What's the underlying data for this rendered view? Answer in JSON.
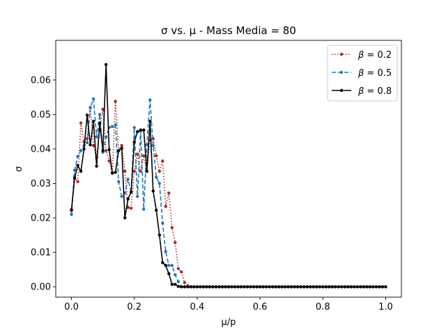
{
  "chart_data": {
    "type": "line",
    "title": "σ vs. μ - Mass Media = 80",
    "xlabel": "μ/p",
    "ylabel": "σ",
    "xlim": [
      -0.05,
      1.05
    ],
    "ylim": [
      -0.003,
      0.0715
    ],
    "xticks": [
      0.0,
      0.2,
      0.4,
      0.6,
      0.8,
      1.0
    ],
    "xtick_labels": [
      "0.0",
      "0.2",
      "0.4",
      "0.6",
      "0.8",
      "1.0"
    ],
    "yticks": [
      0.0,
      0.01,
      0.02,
      0.03,
      0.04,
      0.05,
      0.06
    ],
    "ytick_labels": [
      "0.00",
      "0.01",
      "0.02",
      "0.03",
      "0.04",
      "0.05",
      "0.06"
    ],
    "grid": false,
    "legend_position": "top-right",
    "x": [
      0.0,
      0.01,
      0.02,
      0.03,
      0.04,
      0.05,
      0.06,
      0.07,
      0.08,
      0.09,
      0.1,
      0.11,
      0.12,
      0.13,
      0.14,
      0.15,
      0.16,
      0.17,
      0.18,
      0.19,
      0.2,
      0.21,
      0.22,
      0.23,
      0.24,
      0.25,
      0.26,
      0.27,
      0.28,
      0.29,
      0.3,
      0.31,
      0.32,
      0.33,
      0.34,
      0.35,
      0.36,
      0.37,
      0.38,
      0.39,
      0.4,
      0.41,
      0.42,
      0.43,
      0.44,
      0.45,
      0.46,
      0.47,
      0.48,
      0.49,
      0.5,
      0.51,
      0.52,
      0.53,
      0.54,
      0.55,
      0.56,
      0.57,
      0.58,
      0.59,
      0.6,
      0.61,
      0.62,
      0.63,
      0.64,
      0.65,
      0.66,
      0.67,
      0.68,
      0.69,
      0.7,
      0.71,
      0.72,
      0.73,
      0.74,
      0.75,
      0.76,
      0.77,
      0.78,
      0.79,
      0.8,
      0.81,
      0.82,
      0.83,
      0.84,
      0.85,
      0.86,
      0.87,
      0.88,
      0.89,
      0.9,
      0.91,
      0.92,
      0.93,
      0.94,
      0.95,
      0.96,
      0.97,
      0.98,
      0.99,
      1.0
    ],
    "series": [
      {
        "name": "β = 0.2",
        "legend_prefix": "β",
        "legend_value": "0.2",
        "color": "#a52a2a",
        "style": "dotted",
        "values": [
          0.0225,
          0.032,
          0.0305,
          0.0475,
          0.042,
          0.043,
          0.052,
          0.041,
          0.0375,
          0.0455,
          0.0515,
          0.0395,
          0.0365,
          0.033,
          0.0538,
          0.0395,
          0.041,
          0.0335,
          0.023,
          0.0228,
          0.0335,
          0.0385,
          0.0335,
          0.038,
          0.0335,
          0.0425,
          0.043,
          0.038,
          0.0335,
          0.0365,
          0.0233,
          0.0272,
          0.0172,
          0.0128,
          0.0053,
          0.0043,
          0.0012,
          0.0003,
          0.0,
          0.0,
          0.0,
          0.0,
          0.0,
          0.0,
          0.0,
          0.0,
          0.0,
          0.0,
          0.0,
          0.0,
          0.0,
          0.0,
          0.0,
          0.0,
          0.0,
          0.0,
          0.0,
          0.0,
          0.0,
          0.0,
          0.0,
          0.0,
          0.0,
          0.0,
          0.0,
          0.0,
          0.0,
          0.0,
          0.0,
          0.0,
          0.0,
          0.0,
          0.0,
          0.0,
          0.0,
          0.0,
          0.0,
          0.0,
          0.0,
          0.0,
          0.0,
          0.0,
          0.0,
          0.0,
          0.0,
          0.0,
          0.0,
          0.0,
          0.0,
          0.0,
          0.0,
          0.0,
          0.0,
          0.0,
          0.0,
          0.0,
          0.0,
          0.0,
          0.0,
          0.0,
          0.0
        ]
      },
      {
        "name": "β = 0.5",
        "legend_prefix": "β",
        "legend_value": "0.5",
        "color": "#1f77b4",
        "style": "dashed",
        "values": [
          0.021,
          0.0338,
          0.0378,
          0.0395,
          0.041,
          0.0418,
          0.052,
          0.0545,
          0.0435,
          0.05,
          0.039,
          0.0435,
          0.0462,
          0.0465,
          0.047,
          0.0305,
          0.0262,
          0.0272,
          0.0312,
          0.0275,
          0.0462,
          0.0262,
          0.0452,
          0.0225,
          0.0412,
          0.0542,
          0.041,
          0.0318,
          0.03,
          0.0185,
          0.0102,
          0.0062,
          0.0062,
          0.0035,
          0.0015,
          0.0,
          0.0,
          0.0,
          0.0,
          0.0,
          0.0,
          0.0,
          0.0,
          0.0,
          0.0,
          0.0,
          0.0,
          0.0,
          0.0,
          0.0,
          0.0,
          0.0,
          0.0,
          0.0,
          0.0,
          0.0,
          0.0,
          0.0,
          0.0,
          0.0,
          0.0,
          0.0,
          0.0,
          0.0,
          0.0,
          0.0,
          0.0,
          0.0,
          0.0,
          0.0,
          0.0,
          0.0,
          0.0,
          0.0,
          0.0,
          0.0,
          0.0,
          0.0,
          0.0,
          0.0,
          0.0,
          0.0,
          0.0,
          0.0,
          0.0,
          0.0,
          0.0,
          0.0,
          0.0,
          0.0,
          0.0,
          0.0,
          0.0,
          0.0,
          0.0,
          0.0,
          0.0,
          0.0,
          0.0,
          0.0,
          0.0
        ]
      },
      {
        "name": "β = 0.8",
        "legend_prefix": "β",
        "legend_value": "0.8",
        "color": "#000000",
        "style": "solid",
        "values": [
          0.0222,
          0.0315,
          0.0352,
          0.0335,
          0.04,
          0.0498,
          0.0412,
          0.048,
          0.035,
          0.0475,
          0.0395,
          0.0645,
          0.0398,
          0.033,
          0.0332,
          0.0395,
          0.0402,
          0.02,
          0.0255,
          0.0275,
          0.042,
          0.045,
          0.0455,
          0.0455,
          0.0335,
          0.048,
          0.0278,
          0.0222,
          0.015,
          0.007,
          0.0062,
          0.0038,
          0.0007,
          0.0007,
          0.0001,
          0.0,
          0.0,
          0.0,
          0.0,
          0.0,
          0.0,
          0.0,
          0.0,
          0.0,
          0.0,
          0.0,
          0.0,
          0.0,
          0.0,
          0.0,
          0.0,
          0.0,
          0.0,
          0.0,
          0.0,
          0.0,
          0.0,
          0.0,
          0.0,
          0.0,
          0.0,
          0.0,
          0.0,
          0.0,
          0.0,
          0.0,
          0.0,
          0.0,
          0.0,
          0.0,
          0.0,
          0.0,
          0.0,
          0.0,
          0.0,
          0.0,
          0.0,
          0.0,
          0.0,
          0.0,
          0.0,
          0.0,
          0.0,
          0.0,
          0.0,
          0.0,
          0.0,
          0.0,
          0.0,
          0.0,
          0.0,
          0.0,
          0.0,
          0.0,
          0.0,
          0.0,
          0.0,
          0.0,
          0.0,
          0.0,
          0.0
        ]
      }
    ]
  }
}
